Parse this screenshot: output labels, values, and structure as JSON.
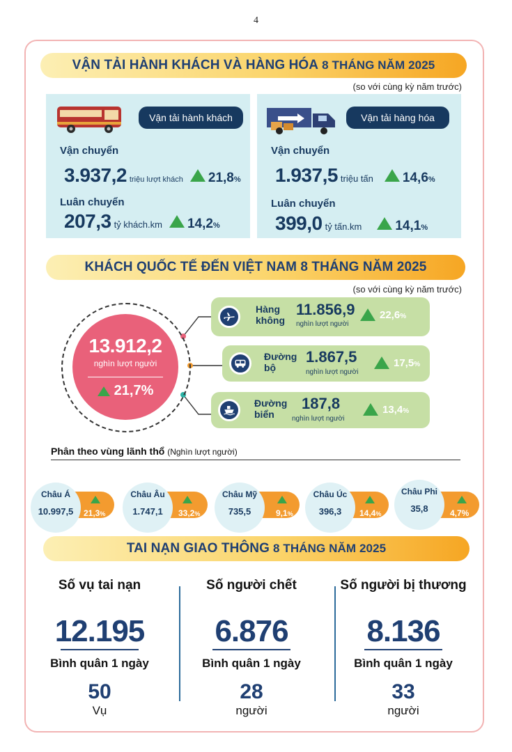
{
  "page_number": "4",
  "transport": {
    "title_main": "VẬN TẢI HÀNH KHÁCH VÀ HÀNG HÓA",
    "title_period": "8 THÁNG NĂM 2025",
    "compare_note": "(so với cùng kỳ năm trước)",
    "passenger": {
      "heading": "Vận tải hành khách",
      "icon": "bus-icon",
      "carried_label": "Vận chuyển",
      "carried_value": "3.937,2",
      "carried_unit": "triệu lượt khách",
      "carried_pct": "21,8",
      "rotation_label": "Luân chuyển",
      "rotation_value": "207,3",
      "rotation_unit": "tỷ khách.km",
      "rotation_pct": "14,2"
    },
    "cargo": {
      "heading": "Vận tải hàng hóa",
      "icon": "truck-icon",
      "carried_label": "Vận chuyển",
      "carried_value": "1.937,5",
      "carried_unit": "triệu tấn",
      "carried_pct": "14,6",
      "rotation_label": "Luân chuyển",
      "rotation_value": "399,0",
      "rotation_unit": "tỷ tấn.km",
      "rotation_pct": "14,1"
    }
  },
  "international": {
    "title": "KHÁCH QUỐC TẾ ĐẾN VIỆT NAM 8 THÁNG NĂM 2025",
    "compare_note": "(so với cùng kỳ năm trước)",
    "total_value": "13.912,2",
    "total_unit": "nghìn lượt người",
    "total_pct": "21,7%",
    "modes": [
      {
        "name_1": "Hàng",
        "name_2": "không",
        "value": "11.856,9",
        "unit": "nghìn lượt người",
        "pct": "22,6",
        "icon": "airplane-icon"
      },
      {
        "name_1": "Đường",
        "name_2": "bộ",
        "value": "1.867,5",
        "unit": "nghìn lượt người",
        "pct": "17,5",
        "icon": "bus-icon"
      },
      {
        "name_1": "Đường",
        "name_2": "biển",
        "value": "187,8",
        "unit": "nghìn lượt người",
        "pct": "13,4",
        "icon": "ship-icon"
      }
    ],
    "region_title": "Phân theo vùng lãnh thổ",
    "region_unit": "(Nghìn lượt người)",
    "regions": [
      {
        "name": "Châu Á",
        "value": "10.997,5",
        "pct": "21,3"
      },
      {
        "name": "Châu Âu",
        "value": "1.747,1",
        "pct": "33,2"
      },
      {
        "name": "Châu Mỹ",
        "value": "735,5",
        "pct": "9,1"
      },
      {
        "name": "Châu Úc",
        "value": "396,3",
        "pct": "14,4"
      },
      {
        "name": "Châu Phi",
        "value": "35,8",
        "pct": "4,7%"
      }
    ]
  },
  "accidents": {
    "title_main": "TAI NẠN GIAO THÔNG",
    "title_period": "8 THÁNG NĂM 2025",
    "avg_label": "Bình quân 1 ngày",
    "columns": [
      {
        "heading": "Số vụ tai nạn",
        "total": "12.195",
        "daily": "50",
        "unit": "Vụ"
      },
      {
        "heading": "Số người chết",
        "total": "6.876",
        "daily": "28",
        "unit": "người"
      },
      {
        "heading": "Số người bị thương",
        "total": "8.136",
        "daily": "33",
        "unit": "người"
      }
    ]
  },
  "colors": {
    "navy": "#17395f",
    "green": "#3aa54a",
    "pink": "#e9617a",
    "orange": "#f39b2f",
    "light_blue": "#d5eef2",
    "light_green": "#c6dfa5"
  }
}
